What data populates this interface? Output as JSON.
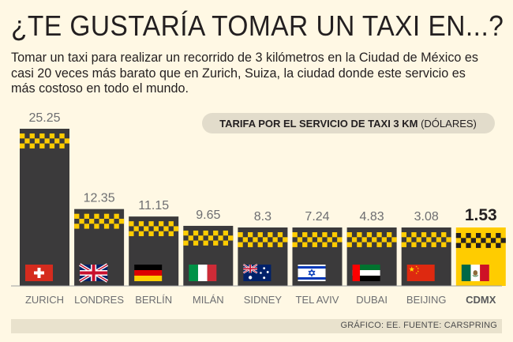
{
  "title": "¿TE GUSTARÍA TOMAR UN TAXI EN...?",
  "subtitle": "Tomar un taxi para realizar un recorrido de 3 kilómetros en la Ciudad de México es casi 20 veces más barato que en Zurich, Suiza, la ciudad donde este servicio es más costoso en todo el mundo.",
  "credit": "GRÁFICO: EE. FUENTE: CARSPRING",
  "chart_data": {
    "type": "bar",
    "title": "",
    "legend_badge": {
      "bold": "TARIFA POR EL SERVICIO DE TAXI 3 KM",
      "normal": "(DÓLARES)"
    },
    "categories": [
      "ZURICH",
      "LONDRES",
      "BERLÍN",
      "MILÁN",
      "SIDNEY",
      "TEL AVIV",
      "DUBAI",
      "BEIJING",
      "CDMX"
    ],
    "values": [
      25.25,
      12.35,
      11.15,
      9.65,
      8.3,
      7.24,
      4.83,
      3.08,
      1.53
    ],
    "value_labels": [
      "25.25",
      "12.35",
      "11.15",
      "9.65",
      "8.3",
      "7.24",
      "4.83",
      "3.08",
      "1.53"
    ],
    "flags": [
      "switzerland-flag",
      "uk-flag",
      "germany-flag",
      "italy-flag",
      "australia-flag",
      "israel-flag",
      "uae-flag",
      "china-flag",
      "mexico-flag"
    ],
    "highlight": "CDMX",
    "ylim": [
      0,
      25.25
    ],
    "grid": false,
    "colors": {
      "bar": "#3b3a3b",
      "highlight_bar": "#ffcc00",
      "checker": "#ffcc00",
      "checker_dark": "#231f20",
      "background": "#fff8e4",
      "label": "#6d6e71",
      "highlight_label": "#231f20"
    }
  }
}
